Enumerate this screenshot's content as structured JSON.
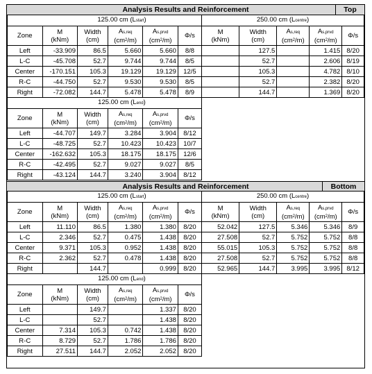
{
  "top": {
    "title": "Analysis Results and Reinforcement",
    "tag": "Top",
    "start": {
      "span_value": "125.00",
      "span_unit": "cm",
      "span_ref": "L",
      "span_ref_sub": "start",
      "rows": [
        [
          "Left",
          "-33.909",
          "86.5",
          "5.660",
          "5.660",
          "8/8"
        ],
        [
          "L-C",
          "-45.708",
          "52.7",
          "9.744",
          "9.744",
          "8/5"
        ],
        [
          "Center",
          "-170.151",
          "105.3",
          "19.129",
          "19.129",
          "12/5"
        ],
        [
          "R-C",
          "-44.750",
          "52.7",
          "9.530",
          "9.530",
          "8/5"
        ],
        [
          "Right",
          "-72.082",
          "144.7",
          "5.478",
          "5.478",
          "8/9"
        ]
      ]
    },
    "centre": {
      "span_value": "250.00",
      "span_unit": "cm",
      "span_ref": "L",
      "span_ref_sub": "centre",
      "rows": [
        [
          "",
          "127.5",
          "",
          "1.415",
          "8/20"
        ],
        [
          "",
          "52.7",
          "",
          "2.606",
          "8/19"
        ],
        [
          "",
          "105.3",
          "",
          "4.782",
          "8/10"
        ],
        [
          "",
          "52.7",
          "",
          "2.382",
          "8/20"
        ],
        [
          "",
          "144.7",
          "",
          "1.369",
          "8/20"
        ]
      ]
    },
    "end": {
      "span_value": "125.00",
      "span_unit": "cm",
      "span_ref": "L",
      "span_ref_sub": "end",
      "rows": [
        [
          "Left",
          "-44.707",
          "149.7",
          "3.284",
          "3.904",
          "8/12"
        ],
        [
          "L-C",
          "-48.725",
          "52.7",
          "10.423",
          "10.423",
          "10/7"
        ],
        [
          "Center",
          "-162.632",
          "105.3",
          "18.175",
          "18.175",
          "12/6"
        ],
        [
          "R-C",
          "-42.495",
          "52.7",
          "9.027",
          "9.027",
          "8/5"
        ],
        [
          "Right",
          "-43.124",
          "144.7",
          "3.240",
          "3.904",
          "8/12"
        ]
      ]
    }
  },
  "bottom": {
    "title": "Analysis Results and Reinforcement",
    "tag": "Bottom",
    "start": {
      "span_value": "125.00",
      "span_unit": "cm",
      "span_ref": "L",
      "span_ref_sub": "start",
      "rows": [
        [
          "Left",
          "11.110",
          "86.5",
          "1.380",
          "1.380",
          "8/20"
        ],
        [
          "L-C",
          "2.346",
          "52.7",
          "0.475",
          "1.438",
          "8/20"
        ],
        [
          "Center",
          "9.371",
          "105.3",
          "0.952",
          "1.438",
          "8/20"
        ],
        [
          "R-C",
          "2.362",
          "52.7",
          "0.478",
          "1.438",
          "8/20"
        ],
        [
          "Right",
          "",
          "144.7",
          "",
          "0.999",
          "8/20"
        ]
      ]
    },
    "centre": {
      "span_value": "250.00",
      "span_unit": "cm",
      "span_ref": "L",
      "span_ref_sub": "centre",
      "rows": [
        [
          "52.042",
          "127.5",
          "5.346",
          "5.346",
          "8/9"
        ],
        [
          "27.508",
          "52.7",
          "5.752",
          "5.752",
          "8/8"
        ],
        [
          "55.015",
          "105.3",
          "5.752",
          "5.752",
          "8/8"
        ],
        [
          "27.508",
          "52.7",
          "5.752",
          "5.752",
          "8/8"
        ],
        [
          "52.965",
          "144.7",
          "3.995",
          "3.995",
          "8/12"
        ]
      ]
    },
    "end": {
      "span_value": "125.00",
      "span_unit": "cm",
      "span_ref": "L",
      "span_ref_sub": "end",
      "rows": [
        [
          "Left",
          "",
          "149.7",
          "",
          "1.337",
          "8/20"
        ],
        [
          "L-C",
          "",
          "52.7",
          "",
          "1.438",
          "8/20"
        ],
        [
          "Center",
          "7.314",
          "105.3",
          "0.742",
          "1.438",
          "8/20"
        ],
        [
          "R-C",
          "8.729",
          "52.7",
          "1.786",
          "1.786",
          "8/20"
        ],
        [
          "Right",
          "27.511",
          "144.7",
          "2.052",
          "2.052",
          "8/20"
        ]
      ]
    }
  },
  "headers": {
    "zone": "Zone",
    "m": "M",
    "m_unit": "(kNm)",
    "width": "Width",
    "width_unit": "(cm)",
    "as_sym": "A",
    "as_req_sub": "s,req",
    "as_prov_sub": "s,prvd",
    "as_unit_pre": "(cm",
    "as_unit_sup": "2",
    "as_unit_post": "/m)",
    "phi": "Φ/s"
  }
}
